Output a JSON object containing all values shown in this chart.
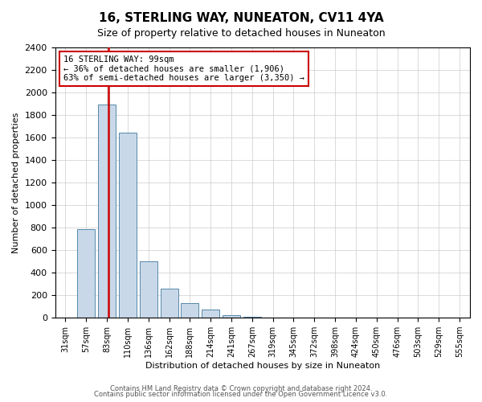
{
  "title": "16, STERLING WAY, NUNEATON, CV11 4YA",
  "subtitle": "Size of property relative to detached houses in Nuneaton",
  "xlabel": "Distribution of detached houses by size in Nuneaton",
  "ylabel": "Number of detached properties",
  "ylim": [
    0,
    2400
  ],
  "yticks": [
    0,
    200,
    400,
    600,
    800,
    1000,
    1200,
    1400,
    1600,
    1800,
    2000,
    2200,
    2400
  ],
  "categories": [
    "31sqm",
    "57sqm",
    "83sqm",
    "110sqm",
    "136sqm",
    "162sqm",
    "188sqm",
    "214sqm",
    "241sqm",
    "267sqm",
    "319sqm",
    "345sqm",
    "372sqm",
    "398sqm",
    "424sqm",
    "450sqm",
    "476sqm",
    "503sqm",
    "529sqm",
    "555sqm"
  ],
  "values": [
    0,
    790,
    1895,
    1645,
    500,
    255,
    130,
    75,
    20,
    8,
    3,
    2,
    1,
    1,
    0,
    0,
    0,
    0,
    0,
    0
  ],
  "bar_color": "#c8d8e8",
  "bar_edge_color": "#5588aa",
  "red_line_x": 2,
  "red_line_color": "#cc0000",
  "annotation_text": "16 STERLING WAY: 99sqm\n← 36% of detached houses are smaller (1,906)\n63% of semi-detached houses are larger (3,350) →",
  "annotation_box_color": "#ffffff",
  "annotation_box_edge": "#cc0000",
  "footer1": "Contains HM Land Registry data © Crown copyright and database right 2024.",
  "footer2": "Contains public sector information licensed under the Open Government Licence v3.0.",
  "background_color": "#ffffff",
  "grid_color": "#cccccc"
}
